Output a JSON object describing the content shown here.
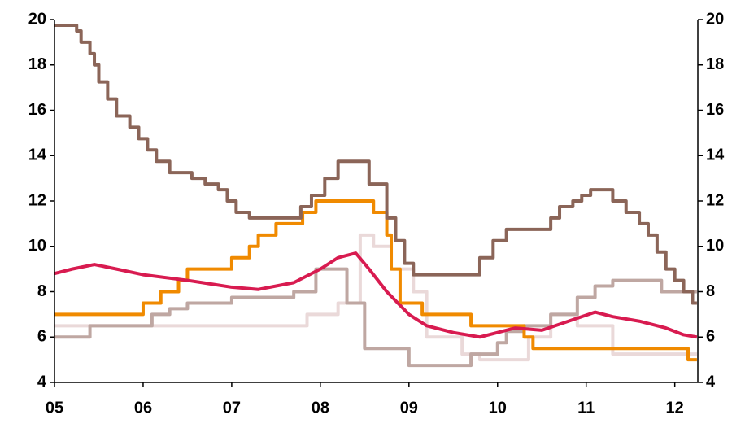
{
  "chart_data": {
    "type": "line",
    "xlim": [
      2005,
      2012.26
    ],
    "xticks": [
      {
        "value": 2005,
        "label": "05"
      },
      {
        "value": 2006,
        "label": "06"
      },
      {
        "value": 2007,
        "label": "07"
      },
      {
        "value": 2008,
        "label": "08"
      },
      {
        "value": 2009,
        "label": "09"
      },
      {
        "value": 2010,
        "label": "10"
      },
      {
        "value": 2011,
        "label": "11"
      },
      {
        "value": 2012,
        "label": "12"
      }
    ],
    "ylim": [
      4,
      20
    ],
    "yticks": [
      4,
      6,
      8,
      10,
      12,
      14,
      16,
      18,
      20
    ],
    "y2lim": [
      4,
      20
    ],
    "y2ticks": [
      4,
      6,
      8,
      10,
      12,
      14,
      16,
      18,
      20
    ],
    "series": [
      {
        "color": "#ead9d9",
        "step": true,
        "x": [
          2005,
          2007.8,
          2007.85,
          2008.2,
          2008.45,
          2008.6,
          2008.8,
          2009.05,
          2009.2,
          2009.6,
          2009.8,
          2010.35,
          2010.6,
          2010.9,
          2011.3,
          2012.25
        ],
        "values": [
          6.5,
          6.5,
          7.0,
          7.5,
          10.5,
          10.0,
          9.0,
          8.0,
          6.0,
          5.25,
          5.0,
          6.0,
          7.0,
          6.5,
          5.25,
          5.25
        ]
      },
      {
        "color": "#bfa7a2",
        "step": true,
        "x": [
          2005,
          2005.4,
          2006.1,
          2006.3,
          2006.5,
          2007.0,
          2007.7,
          2007.95,
          2008.3,
          2008.5,
          2009.0,
          2009.7,
          2010.0,
          2010.1,
          2010.3,
          2010.6,
          2010.9,
          2011.1,
          2011.3,
          2011.85,
          2012.25
        ],
        "values": [
          6.0,
          6.5,
          7.0,
          7.25,
          7.5,
          7.75,
          8.0,
          9.0,
          7.5,
          5.5,
          4.75,
          5.25,
          5.75,
          6.25,
          6.5,
          7.0,
          7.75,
          8.25,
          8.5,
          8.0,
          8.0
        ]
      },
      {
        "color": "#f08a00",
        "step": true,
        "x": [
          2005,
          2006.0,
          2006.2,
          2006.4,
          2006.5,
          2007.0,
          2007.2,
          2007.3,
          2007.5,
          2007.8,
          2007.95,
          2008.6,
          2008.75,
          2008.8,
          2008.9,
          2009.15,
          2009.7,
          2010.3,
          2010.4,
          2012.15,
          2012.25
        ],
        "values": [
          7.0,
          7.5,
          8.0,
          8.5,
          9.0,
          9.5,
          10.0,
          10.5,
          11.0,
          11.5,
          12.0,
          11.5,
          10.5,
          9.0,
          7.5,
          7.0,
          6.5,
          6.0,
          5.5,
          5.0,
          5.0
        ]
      },
      {
        "color": "#d81b50",
        "step": false,
        "x": [
          2005,
          2005.2,
          2005.45,
          2005.7,
          2006.0,
          2006.5,
          2007.0,
          2007.3,
          2007.7,
          2008.0,
          2008.2,
          2008.4,
          2008.55,
          2008.75,
          2009.0,
          2009.2,
          2009.5,
          2009.8,
          2010.0,
          2010.2,
          2010.5,
          2010.8,
          2011.1,
          2011.3,
          2011.6,
          2011.9,
          2012.1,
          2012.25
        ],
        "values": [
          8.8,
          9.0,
          9.2,
          9.0,
          8.75,
          8.5,
          8.2,
          8.1,
          8.4,
          9.0,
          9.5,
          9.7,
          9.0,
          8.0,
          7.0,
          6.5,
          6.2,
          6.0,
          6.2,
          6.4,
          6.3,
          6.7,
          7.1,
          6.9,
          6.7,
          6.4,
          6.1,
          6.0
        ]
      },
      {
        "color": "#8b6558",
        "step": true,
        "x": [
          2005,
          2005.25,
          2005.3,
          2005.4,
          2005.45,
          2005.5,
          2005.6,
          2005.7,
          2005.85,
          2005.95,
          2006.05,
          2006.15,
          2006.3,
          2006.55,
          2006.7,
          2006.85,
          2006.95,
          2007.05,
          2007.2,
          2007.78,
          2007.9,
          2008.05,
          2008.2,
          2008.55,
          2008.75,
          2008.85,
          2008.95,
          2009.05,
          2009.8,
          2009.95,
          2010.1,
          2010.6,
          2010.7,
          2010.85,
          2010.95,
          2011.05,
          2011.3,
          2011.45,
          2011.6,
          2011.7,
          2011.8,
          2011.9,
          2012.0,
          2012.1,
          2012.2,
          2012.25
        ],
        "values": [
          19.75,
          19.5,
          19.0,
          18.5,
          18.0,
          17.25,
          16.5,
          15.75,
          15.25,
          14.75,
          14.25,
          13.75,
          13.25,
          13.0,
          12.75,
          12.5,
          12.0,
          11.5,
          11.25,
          11.75,
          12.25,
          13.0,
          13.75,
          12.75,
          11.25,
          10.25,
          9.25,
          8.75,
          9.5,
          10.25,
          10.75,
          11.25,
          11.75,
          12.0,
          12.25,
          12.5,
          12.0,
          11.5,
          11.0,
          10.5,
          9.75,
          9.0,
          8.5,
          8.0,
          7.5,
          7.5
        ]
      }
    ]
  }
}
